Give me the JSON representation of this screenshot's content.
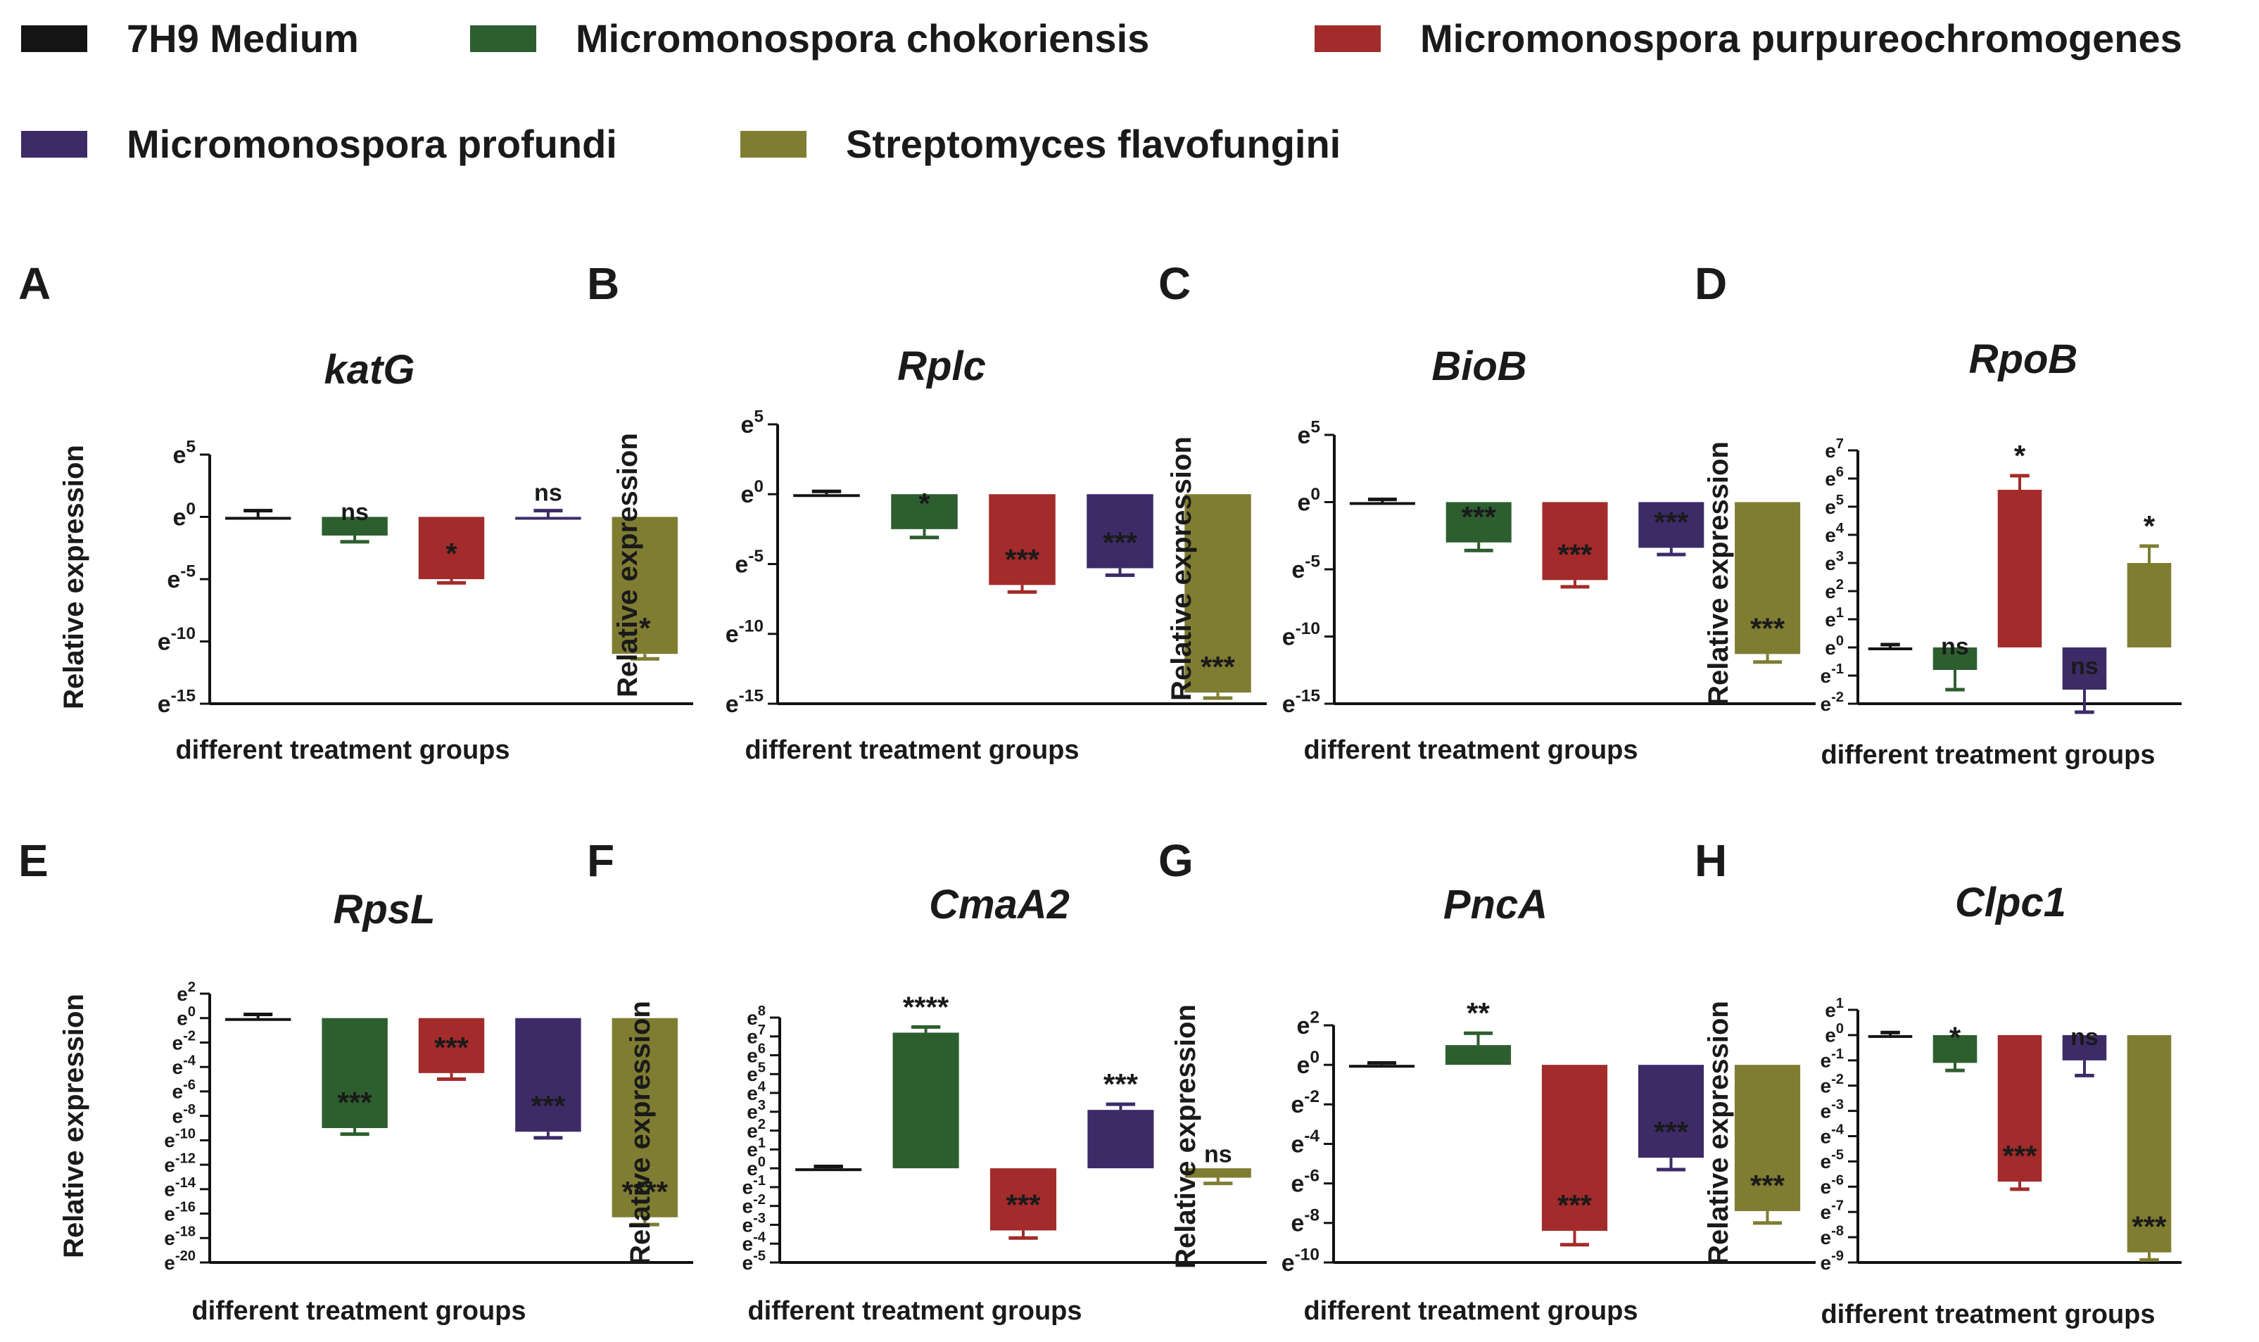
{
  "legend": [
    {
      "label": "7H9 Medium",
      "color": "#141414"
    },
    {
      "label": "Micromonospora chokoriensis",
      "color": "#2d5e2f"
    },
    {
      "label": "Micromonospora purpureochromogenes",
      "color": "#a32b2b"
    },
    {
      "label": "Micromonospora profundi",
      "color": "#3d2b68"
    },
    {
      "label": "Streptomyces flavofungini",
      "color": "#7f7d32"
    }
  ],
  "colors": [
    "#141414",
    "#2d5e2f",
    "#a32b2b",
    "#3d2b68",
    "#7f7d32"
  ],
  "chart_data": [
    {
      "panel": "A",
      "type": "bar",
      "title": "katG",
      "ylabel": "Relative expression",
      "xlabel": "different treatment groups",
      "categories": [
        "7H9 Medium",
        "Micromonospora chokoriensis",
        "Micromonospora purpureochromogenes",
        "Micromonospora profundi",
        "Streptomyces flavofungini"
      ],
      "values": [
        0,
        -1.5,
        -5,
        0,
        -11
      ],
      "errors": [
        0.5,
        0.5,
        0.3,
        0.5,
        0.4
      ],
      "significance": [
        "",
        "ns",
        "*",
        "ns",
        "*"
      ],
      "ylim": [
        -15,
        5
      ],
      "yticks": [
        5,
        0,
        -5,
        -10,
        -15
      ]
    },
    {
      "panel": "B",
      "type": "bar",
      "title": "Rplc",
      "ylabel": "Relative expression",
      "xlabel": "different treatment groups",
      "categories": [
        "7H9 Medium",
        "Micromonospora chokoriensis",
        "Micromonospora purpureochromogenes",
        "Micromonospora profundi",
        "Streptomyces flavofungini"
      ],
      "values": [
        0,
        -2.5,
        -6.5,
        -5.3,
        -14.2
      ],
      "errors": [
        0.2,
        0.6,
        0.5,
        0.5,
        0.4
      ],
      "significance": [
        "",
        "*",
        "***",
        "***",
        "***"
      ],
      "ylim": [
        -15,
        5
      ],
      "yticks": [
        5,
        0,
        -5,
        -10,
        -15
      ]
    },
    {
      "panel": "C",
      "type": "bar",
      "title": "BioB",
      "ylabel": "Relative expression",
      "xlabel": "different treatment groups",
      "categories": [
        "7H9 Medium",
        "Micromonospora chokoriensis",
        "Micromonospora purpureochromogenes",
        "Micromonospora profundi",
        "Streptomyces flavofungini"
      ],
      "values": [
        0,
        -3,
        -5.8,
        -3.4,
        -11.3
      ],
      "errors": [
        0.2,
        0.6,
        0.5,
        0.5,
        0.6
      ],
      "significance": [
        "",
        "***",
        "***",
        "***",
        "***"
      ],
      "ylim": [
        -15,
        5
      ],
      "yticks": [
        5,
        0,
        -5,
        -10,
        -15
      ]
    },
    {
      "panel": "D",
      "type": "bar",
      "title": "RpoB",
      "ylabel": "Relative expression",
      "xlabel": "different treatment groups",
      "categories": [
        "7H9 Medium",
        "Micromonospora chokoriensis",
        "Micromonospora purpureochromogenes",
        "Micromonospora profundi",
        "Streptomyces flavofungini"
      ],
      "values": [
        0,
        -0.8,
        5.6,
        -1.5,
        3
      ],
      "errors": [
        0.1,
        0.7,
        0.5,
        0.8,
        0.6
      ],
      "significance": [
        "",
        "ns",
        "*",
        "ns",
        "*"
      ],
      "ylim": [
        -2,
        7
      ],
      "yticks": [
        7,
        6,
        5,
        4,
        3,
        2,
        1,
        0,
        -1,
        -2
      ]
    },
    {
      "panel": "E",
      "type": "bar",
      "title": "RpsL",
      "ylabel": "Relative expression",
      "xlabel": "different treatment groups",
      "categories": [
        "7H9 Medium",
        "Micromonospora chokoriensis",
        "Micromonospora purpureochromogenes",
        "Micromonospora profundi",
        "Streptomyces flavofungini"
      ],
      "values": [
        0,
        -9,
        -4.5,
        -9.3,
        -16.3
      ],
      "errors": [
        0.3,
        0.5,
        0.5,
        0.5,
        0.6
      ],
      "significance": [
        "",
        "***",
        "***",
        "***",
        "****"
      ],
      "ylim": [
        -20,
        2
      ],
      "yticks": [
        2,
        0,
        -2,
        -4,
        -6,
        -8,
        -10,
        -12,
        -14,
        -16,
        -18,
        -20
      ]
    },
    {
      "panel": "F",
      "type": "bar",
      "title": "CmaA2",
      "ylabel": "Relative expression",
      "xlabel": "different treatment groups",
      "categories": [
        "7H9 Medium",
        "Micromonospora chokoriensis",
        "Micromonospora purpureochromogenes",
        "Micromonospora profundi",
        "Streptomyces flavofungini"
      ],
      "values": [
        0,
        7.2,
        -3.3,
        3.1,
        -0.5
      ],
      "errors": [
        0.1,
        0.3,
        0.4,
        0.3,
        0.3
      ],
      "significance": [
        "",
        "****",
        "***",
        "***",
        "ns"
      ],
      "ylim": [
        -5,
        8
      ],
      "yticks": [
        8,
        7,
        6,
        5,
        4,
        3,
        2,
        1,
        0,
        -1,
        -2,
        -3,
        -4,
        -5
      ]
    },
    {
      "panel": "G",
      "type": "bar",
      "title": "PncA",
      "ylabel": "Relative expression",
      "xlabel": "different treatment groups",
      "categories": [
        "7H9 Medium",
        "Micromonospora chokoriensis",
        "Micromonospora purpureochromogenes",
        "Micromonospora profundi",
        "Streptomyces flavofungini"
      ],
      "values": [
        0,
        1,
        -8.4,
        -4.7,
        -7.4
      ],
      "errors": [
        0.1,
        0.6,
        0.7,
        0.6,
        0.6
      ],
      "significance": [
        "",
        "**",
        "***",
        "***",
        "***"
      ],
      "ylim": [
        -10,
        2
      ],
      "yticks": [
        2,
        0,
        -2,
        -4,
        -6,
        -8,
        -10
      ]
    },
    {
      "panel": "H",
      "type": "bar",
      "title": "Clpc1",
      "ylabel": "Relative expression",
      "xlabel": "different treatment groups",
      "categories": [
        "7H9 Medium",
        "Micromonospora chokoriensis",
        "Micromonospora purpureochromogenes",
        "Micromonospora profundi",
        "Streptomyces flavofungini"
      ],
      "values": [
        0,
        -1.1,
        -5.8,
        -1,
        -8.6
      ],
      "errors": [
        0.1,
        0.3,
        0.3,
        0.6,
        0.3
      ],
      "significance": [
        "",
        "*",
        "***",
        "ns",
        "***"
      ],
      "ylim": [
        -9,
        1
      ],
      "yticks": [
        1,
        0,
        -1,
        -2,
        -3,
        -4,
        -5,
        -6,
        -7,
        -8,
        -9
      ]
    }
  ]
}
